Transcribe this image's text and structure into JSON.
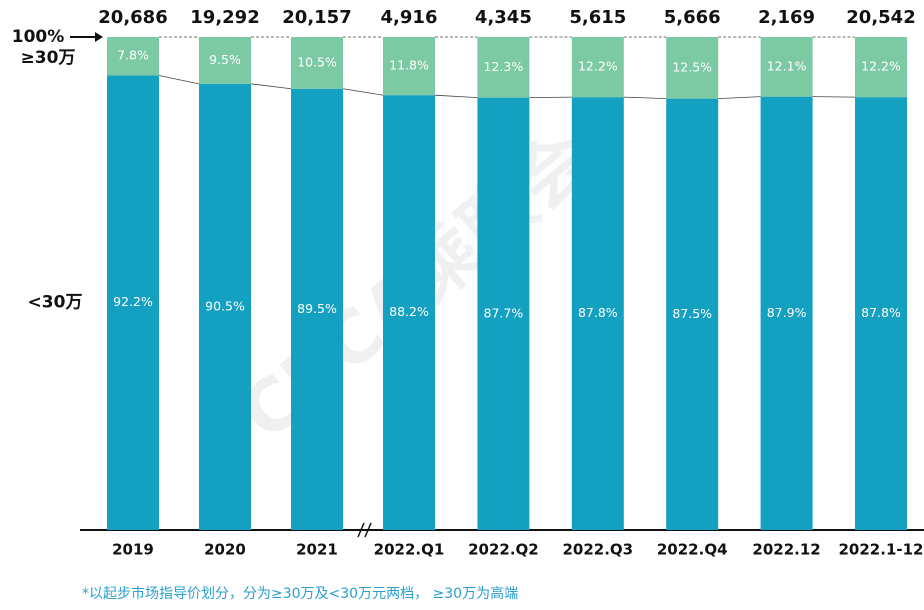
{
  "chart_data": {
    "type": "bar",
    "stacked": true,
    "watermark": "CPCA乘联会",
    "annotations": {
      "top": "100%",
      "footnote": "*以起步市场指导价划分，分为≥30万及<30万元两档， ≥30万为高端"
    },
    "categories": [
      "2019",
      "2020",
      "2021",
      "2022.Q1",
      "2022.Q2",
      "2022.Q3",
      "2022.Q4",
      "2022.12",
      "2022.1-12"
    ],
    "totals": [
      {
        "value": 20686,
        "label": "20,686"
      },
      {
        "value": 19292,
        "label": "19,292"
      },
      {
        "value": 20157,
        "label": "20,157"
      },
      {
        "value": 4916,
        "label": "4,916"
      },
      {
        "value": 4345,
        "label": "4,345"
      },
      {
        "value": 5615,
        "label": "5,615"
      },
      {
        "value": 5666,
        "label": "5,666"
      },
      {
        "value": 2169,
        "label": "2,169"
      },
      {
        "value": 20542,
        "label": "20,542"
      }
    ],
    "series": [
      {
        "name": "<30万",
        "color": "#14a0c0",
        "values": [
          92.2,
          90.5,
          89.5,
          88.2,
          87.7,
          87.8,
          87.5,
          87.9,
          87.8
        ],
        "value_labels": [
          "92.2%",
          "90.5%",
          "89.5%",
          "88.2%",
          "87.7%",
          "87.8%",
          "87.5%",
          "87.9%",
          "87.8%"
        ]
      },
      {
        "name": "≥30万",
        "color": "#7ccaa3",
        "values": [
          7.8,
          9.5,
          10.5,
          11.8,
          12.3,
          12.2,
          12.5,
          12.1,
          12.2
        ],
        "value_labels": [
          "7.8%",
          "9.5%",
          "10.5%",
          "11.8%",
          "12.3%",
          "12.2%",
          "12.5%",
          "12.1%",
          "12.2%"
        ]
      }
    ],
    "ylim": [
      0,
      100
    ]
  }
}
